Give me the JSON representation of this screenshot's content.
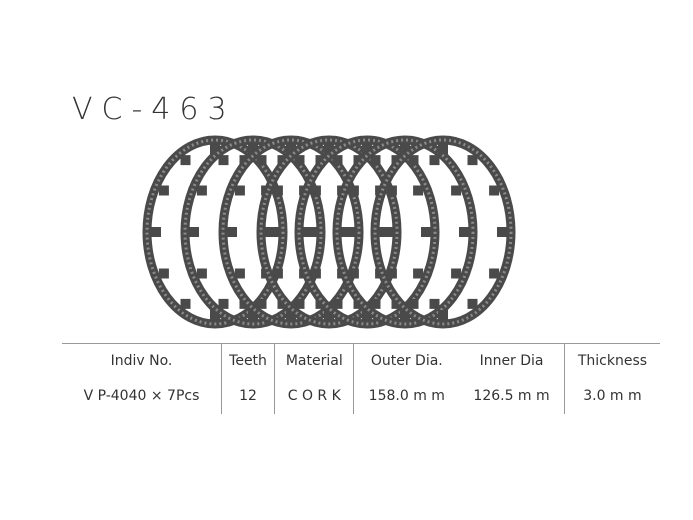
{
  "product": {
    "model": "VC-463"
  },
  "colors": {
    "plate": "#4a4a4a",
    "plate_light": "#8a8a8a",
    "line": "#999999"
  },
  "spec_table": {
    "headers": [
      "Indiv No.",
      "Teeth",
      "Material",
      "Outer Dia.",
      "Inner Dia",
      "Thickness"
    ],
    "rows": [
      [
        "V P-4040 × 7Pcs",
        "12",
        "C O R K",
        "158.0 m m",
        "126.5 m m",
        "3.0 m m"
      ]
    ]
  },
  "plate_count": 7
}
